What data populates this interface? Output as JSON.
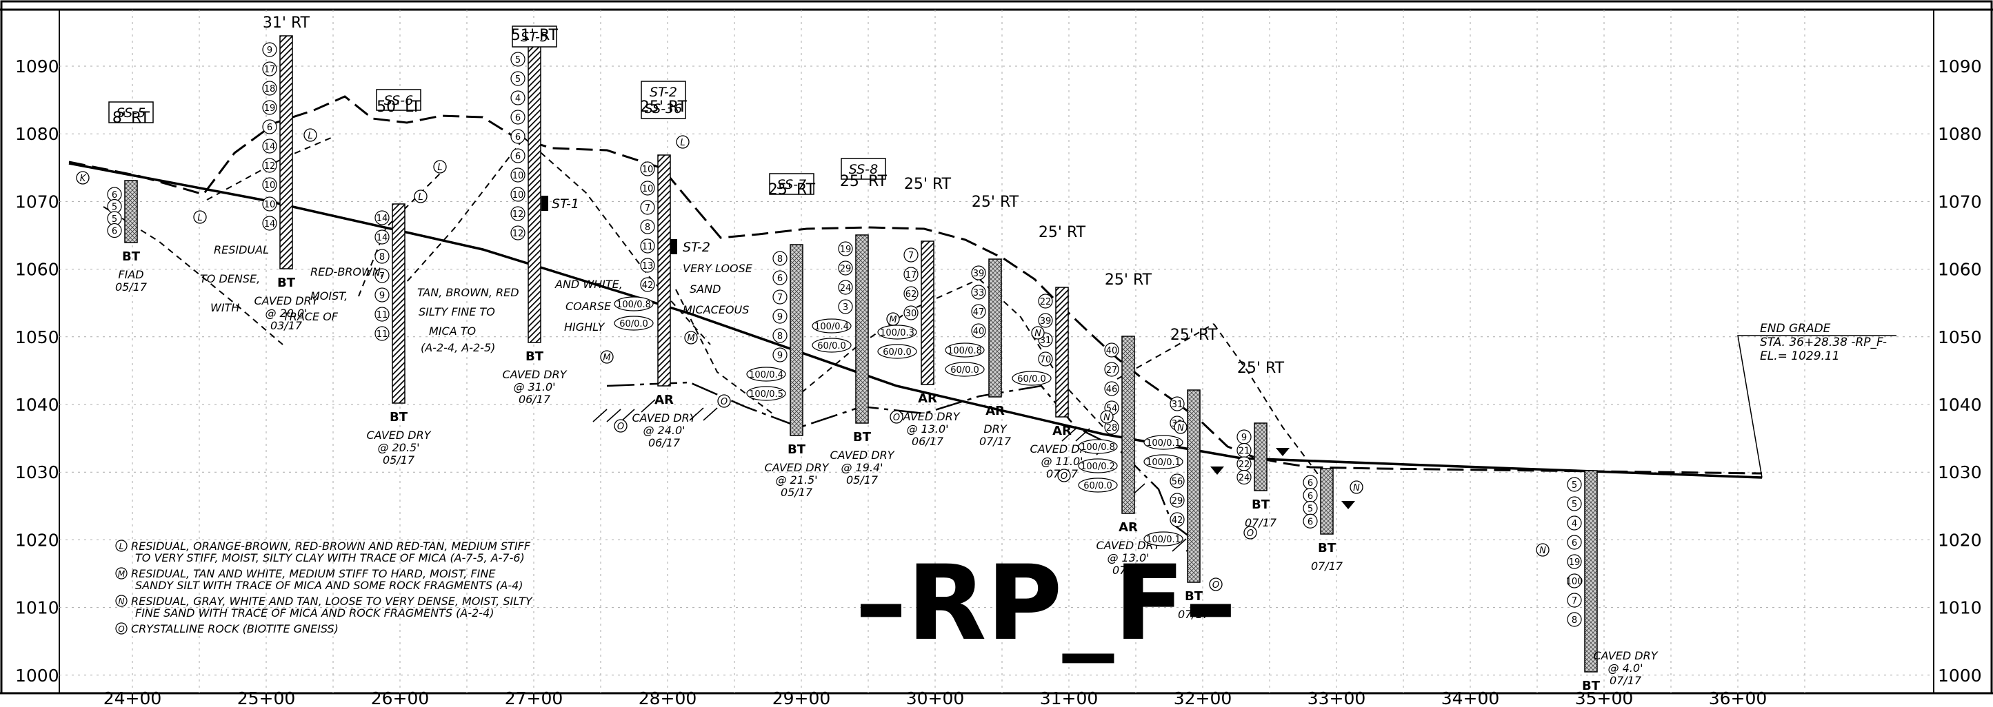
{
  "profile_name": "–RP_F–",
  "elevations": [
    "1090",
    "1080",
    "1070",
    "1060",
    "1050",
    "1040",
    "1030",
    "1020",
    "1010",
    "1000"
  ],
  "stations": [
    "24+00",
    "25+00",
    "26+00",
    "27+00",
    "28+00",
    "29+00",
    "30+00",
    "31+00",
    "32+00",
    "33+00",
    "34+00",
    "35+00",
    "36+00"
  ],
  "end_grade": [
    "END GRADE",
    "STA. 36+28.38 -RP_F-",
    "EL.= 1029.11"
  ],
  "borings": [
    {
      "tag": "SS-5",
      "offset": "8' RT",
      "bottom": "BT",
      "notes": [
        "FIAD",
        "05/17"
      ],
      "n": [
        "6",
        "5",
        "5",
        "6"
      ],
      "hatch": "gneiss"
    },
    {
      "tag": "",
      "offset": "31' RT",
      "bottom": "BT",
      "notes": [
        "CAVED DRY",
        "@ 20.0'",
        "03/17"
      ],
      "n": [
        "9",
        "17",
        "18",
        "19",
        "6",
        "14",
        "12",
        "10",
        "10",
        "14"
      ],
      "hatch": "stripe"
    },
    {
      "tag": "SS-6",
      "offset": "50' LT",
      "bottom": "BT",
      "notes": [
        "CAVED DRY",
        "@ 20.5'",
        "05/17"
      ],
      "n": [
        "14",
        "14",
        "8",
        "7",
        "9",
        "11",
        "11"
      ],
      "hatch": "stripe"
    },
    {
      "tag": "ST-5",
      "offset": "51' RT",
      "bottom": "BT",
      "notes": [
        "CAVED DRY",
        "@ 31.0'",
        "06/17"
      ],
      "n": [
        "5",
        "5",
        "4",
        "6",
        "6",
        "6",
        "10",
        "10",
        "12",
        "12"
      ],
      "hatch": "stripe"
    },
    {
      "tag": "ST-2 / SS-36",
      "offset": "25' RT",
      "bottom": "AR",
      "notes": [
        "CAVED DRY",
        "@ 24.0'",
        "06/17"
      ],
      "n": [
        "10",
        "10",
        "7",
        "8",
        "11",
        "13",
        "42",
        "100/0.8",
        "60/0.0"
      ],
      "hatch": "stripe"
    },
    {
      "tag": "SS-7",
      "offset": "25' RT",
      "bottom": "BT",
      "notes": [
        "CAVED DRY",
        "@ 21.5'",
        "05/17"
      ],
      "n": [
        "8",
        "6",
        "7",
        "9",
        "8",
        "9",
        "100/0.4",
        "100/0.5"
      ],
      "hatch": "gneiss"
    },
    {
      "tag": "SS-8",
      "offset": "25' RT",
      "bottom": "BT",
      "notes": [
        "CAVED DRY",
        "@ 19.4'",
        "05/17"
      ],
      "n": [
        "19",
        "29",
        "24",
        "3",
        "100/0.4",
        "60/0.0"
      ],
      "hatch": "gneiss"
    },
    {
      "tag": "",
      "offset": "25' RT",
      "bottom": "AR",
      "notes": [
        "CAVED DRY",
        "@ 13.0'",
        "06/17"
      ],
      "n": [
        "7",
        "17",
        "62",
        "30",
        "100/0.3",
        "60/0.0"
      ],
      "hatch": "stripe"
    },
    {
      "tag": "",
      "offset": "25' RT",
      "bottom": "AR",
      "notes": [
        "DRY",
        "07/17"
      ],
      "n": [
        "39",
        "33",
        "47",
        "40",
        "100/0.8",
        "60/0.0"
      ],
      "hatch": "gneiss"
    },
    {
      "tag": "",
      "offset": "25' RT",
      "bottom": "AR",
      "notes": [
        "CAVED DRY",
        "@ 11.0'",
        "07/17"
      ],
      "n": [
        "22",
        "39",
        "31",
        "70",
        "60/0.0"
      ],
      "hatch": "stripe"
    },
    {
      "tag": "",
      "offset": "25' RT",
      "bottom": "AR",
      "notes": [
        "CAVED DRY",
        "@ 13.0'",
        "07/17"
      ],
      "n": [
        "40",
        "27",
        "46",
        "54",
        "28",
        "100/0.8",
        "100/0.2",
        "60/0.0"
      ],
      "hatch": "gneiss"
    },
    {
      "tag": "",
      "offset": "25' RT",
      "bottom": "BT",
      "notes": [
        "07/17"
      ],
      "n": [
        "31",
        "31",
        "100/0.1",
        "100/0.1",
        "56",
        "29",
        "42",
        "100/0.1"
      ],
      "hatch": "gneiss"
    },
    {
      "tag": "",
      "offset": "25' RT",
      "bottom": "BT",
      "notes": [
        "07/17"
      ],
      "n": [
        "9",
        "21",
        "22",
        "24"
      ],
      "hatch": "gneiss"
    },
    {
      "tag": "",
      "offset": "",
      "bottom": "BT",
      "notes": [
        "07/17"
      ],
      "n": [
        "6",
        "6",
        "5",
        "6"
      ],
      "hatch": "gneiss"
    },
    {
      "tag": "",
      "offset": "",
      "bottom": "BT",
      "notes": [
        "CAVED DRY",
        "@ 4.0'",
        "07/17"
      ],
      "n": [
        "5",
        "5",
        "4",
        "6",
        "19",
        "100",
        "7",
        "8"
      ],
      "hatch": "gneiss"
    }
  ],
  "samples": [
    "ST-1",
    "ST-2"
  ],
  "strata_notes": [
    "RESIDUAL",
    "TO DENSE,",
    "WITH",
    "RED-BROWN,",
    "MOIST,",
    "TRACE OF",
    "TAN, BROWN, RED",
    "SILTY FINE TO",
    "MICA TO",
    "(A-2-4, A-2-5)",
    "AND WHITE,",
    "COARSE",
    "HIGHLY",
    "VERY LOOSE",
    "SAND",
    "MICACEOUS"
  ],
  "legend": [
    {
      "mark": "L",
      "text": [
        "RESIDUAL, ORANGE-BROWN, RED-BROWN AND RED-TAN, MEDIUM STIFF",
        "TO VERY STIFF, MOIST, SILTY CLAY WITH TRACE OF MICA (A-7-5, A-7-6)"
      ]
    },
    {
      "mark": "M",
      "text": [
        "RESIDUAL, TAN AND WHITE, MEDIUM STIFF TO HARD, MOIST, FINE",
        "SANDY SILT WITH TRACE OF MICA AND SOME ROCK FRAGMENTS (A-4)"
      ]
    },
    {
      "mark": "N",
      "text": [
        "RESIDUAL, GRAY, WHITE AND TAN, LOOSE TO VERY DENSE, MOIST, SILTY",
        "FINE SAND WITH TRACE OF MICA AND ROCK FRAGMENTS (A-2-4)"
      ]
    },
    {
      "mark": "O",
      "text": [
        "CRYSTALLINE ROCK (BIOTITE GNEISS)"
      ]
    }
  ],
  "stratum_marks": [
    "K",
    "L",
    "L",
    "L",
    "L",
    "L",
    "M",
    "M",
    "M",
    "N",
    "N",
    "N",
    "N",
    "N",
    "O",
    "O",
    "O",
    "O",
    "O",
    "O"
  ]
}
